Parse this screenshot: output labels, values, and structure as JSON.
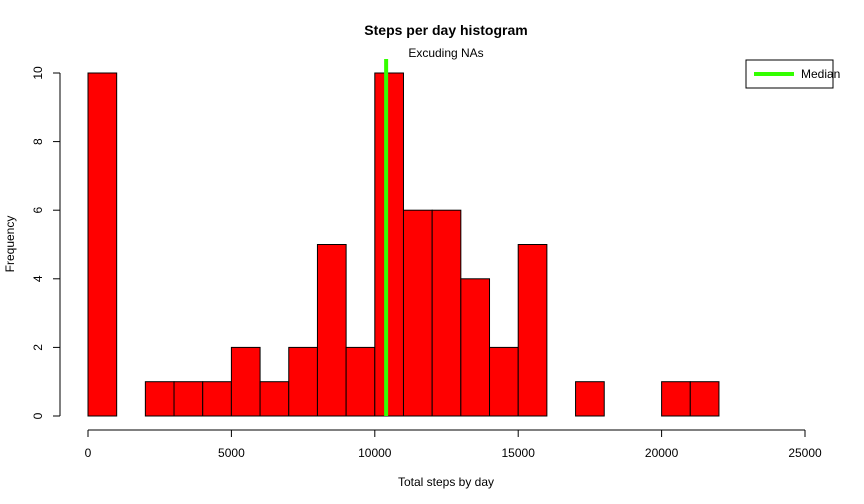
{
  "chart_data": {
    "type": "bar",
    "title": "Steps per day histogram",
    "subtitle": "Excuding NAs",
    "xlabel": "Total steps by day",
    "ylabel": "Frequency",
    "xlim": [
      0,
      25000
    ],
    "ylim": [
      0,
      10
    ],
    "bin_width": 1000,
    "bins": [
      {
        "start": 0,
        "end": 1000,
        "count": 10
      },
      {
        "start": 1000,
        "end": 2000,
        "count": 0
      },
      {
        "start": 2000,
        "end": 3000,
        "count": 1
      },
      {
        "start": 3000,
        "end": 4000,
        "count": 1
      },
      {
        "start": 4000,
        "end": 5000,
        "count": 1
      },
      {
        "start": 5000,
        "end": 6000,
        "count": 2
      },
      {
        "start": 6000,
        "end": 7000,
        "count": 1
      },
      {
        "start": 7000,
        "end": 8000,
        "count": 2
      },
      {
        "start": 8000,
        "end": 9000,
        "count": 5
      },
      {
        "start": 9000,
        "end": 10000,
        "count": 2
      },
      {
        "start": 10000,
        "end": 11000,
        "count": 10
      },
      {
        "start": 11000,
        "end": 12000,
        "count": 6
      },
      {
        "start": 12000,
        "end": 13000,
        "count": 6
      },
      {
        "start": 13000,
        "end": 14000,
        "count": 4
      },
      {
        "start": 14000,
        "end": 15000,
        "count": 2
      },
      {
        "start": 15000,
        "end": 16000,
        "count": 5
      },
      {
        "start": 16000,
        "end": 17000,
        "count": 0
      },
      {
        "start": 17000,
        "end": 18000,
        "count": 1
      },
      {
        "start": 18000,
        "end": 19000,
        "count": 0
      },
      {
        "start": 19000,
        "end": 20000,
        "count": 0
      },
      {
        "start": 20000,
        "end": 21000,
        "count": 1
      },
      {
        "start": 21000,
        "end": 22000,
        "count": 1
      },
      {
        "start": 22000,
        "end": 23000,
        "count": 0
      },
      {
        "start": 23000,
        "end": 24000,
        "count": 0
      },
      {
        "start": 24000,
        "end": 25000,
        "count": 0
      }
    ],
    "x_ticks": [
      0,
      5000,
      10000,
      15000,
      20000,
      25000
    ],
    "y_ticks": [
      0,
      2,
      4,
      6,
      8,
      10
    ],
    "median": 10395,
    "bar_color": "#ff0000",
    "median_color": "#33ff00",
    "legend": {
      "label": "Median",
      "position": "top-right"
    },
    "grid": false
  }
}
